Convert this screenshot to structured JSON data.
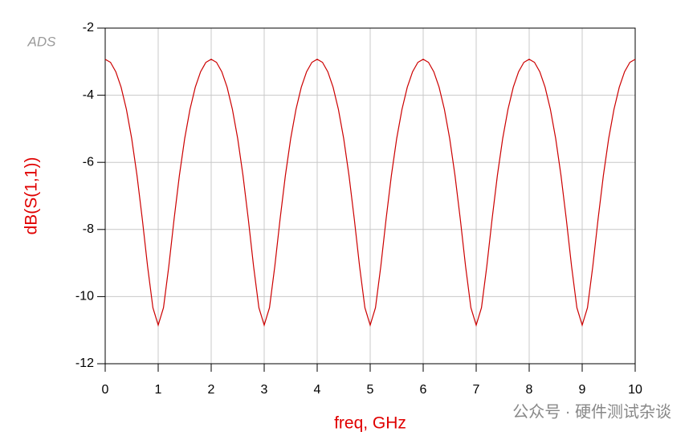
{
  "chart_data": {
    "type": "line",
    "x_label": "freq, GHz",
    "y_label": "dB(S(1,1))",
    "annotations": [
      "ADS",
      "公众号 · 硬件测试杂谈"
    ],
    "color": "#cc0000",
    "grid": true,
    "xlim": [
      0,
      10
    ],
    "xticks": [
      0,
      1,
      2,
      3,
      4,
      5,
      6,
      7,
      8,
      9,
      10
    ],
    "ylim": [
      -12,
      -2
    ],
    "yticks": [
      -2,
      -4,
      -6,
      -8,
      -10,
      -12
    ],
    "x": [
      0,
      0.1,
      0.2,
      0.3,
      0.4,
      0.5,
      0.6,
      0.7,
      0.8,
      0.9,
      1,
      1.1,
      1.2,
      1.3,
      1.4,
      1.5,
      1.6,
      1.7,
      1.8,
      1.9,
      2,
      2.1,
      2.2,
      2.3,
      2.4,
      2.5,
      2.6,
      2.7,
      2.8,
      2.9,
      3,
      3.1,
      3.2,
      3.3,
      3.4,
      3.5,
      3.6,
      3.7,
      3.8,
      3.9,
      4,
      4.1,
      4.2,
      4.3,
      4.4,
      4.5,
      4.6,
      4.7,
      4.8,
      4.9,
      5,
      5.1,
      5.2,
      5.3,
      5.4,
      5.5,
      5.6,
      5.7,
      5.8,
      5.9,
      6,
      6.1,
      6.2,
      6.3,
      6.4,
      6.5,
      6.6,
      6.7,
      6.8,
      6.9,
      7,
      7.1,
      7.2,
      7.3,
      7.4,
      7.5,
      7.6,
      7.7,
      7.8,
      7.9,
      8,
      8.1,
      8.2,
      8.3,
      8.4,
      8.5,
      8.6,
      8.7,
      8.8,
      8.9,
      9,
      9.1,
      9.2,
      9.3,
      9.4,
      9.5,
      9.6,
      9.7,
      9.8,
      9.9,
      10
    ],
    "values": [
      -2.93,
      -3.02,
      -3.3,
      -3.76,
      -4.42,
      -5.29,
      -6.39,
      -7.69,
      -9.1,
      -10.33,
      -10.85,
      -10.33,
      -9.1,
      -7.69,
      -6.39,
      -5.29,
      -4.42,
      -3.76,
      -3.3,
      -3.02,
      -2.93,
      -3.02,
      -3.3,
      -3.76,
      -4.42,
      -5.29,
      -6.39,
      -7.69,
      -9.1,
      -10.33,
      -10.85,
      -10.33,
      -9.1,
      -7.69,
      -6.39,
      -5.29,
      -4.42,
      -3.76,
      -3.3,
      -3.02,
      -2.93,
      -3.02,
      -3.3,
      -3.76,
      -4.42,
      -5.29,
      -6.39,
      -7.69,
      -9.1,
      -10.33,
      -10.85,
      -10.33,
      -9.1,
      -7.69,
      -6.39,
      -5.29,
      -4.42,
      -3.76,
      -3.3,
      -3.02,
      -2.93,
      -3.02,
      -3.3,
      -3.76,
      -4.42,
      -5.29,
      -6.39,
      -7.69,
      -9.1,
      -10.33,
      -10.85,
      -10.33,
      -9.1,
      -7.69,
      -6.39,
      -5.29,
      -4.42,
      -3.76,
      -3.3,
      -3.02,
      -2.93,
      -3.02,
      -3.3,
      -3.76,
      -4.42,
      -5.29,
      -6.39,
      -7.69,
      -9.1,
      -10.33,
      -10.85,
      -10.33,
      -9.1,
      -7.69,
      -6.39,
      -5.29,
      -4.42,
      -3.76,
      -3.3,
      -3.02,
      -2.93
    ]
  }
}
